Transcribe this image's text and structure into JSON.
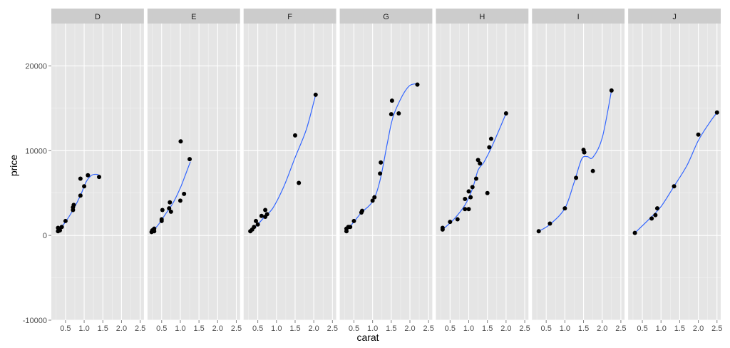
{
  "chart_data": {
    "type": "scatter",
    "xlabel": "carat",
    "ylabel": "price",
    "xlim": [
      0.12,
      2.6
    ],
    "ylim": [
      -10000,
      25000
    ],
    "x_ticks": [
      0.5,
      1.0,
      1.5,
      2.0,
      2.5
    ],
    "x_tick_labels": [
      "0.5",
      "1.0",
      "1.5",
      "2.0",
      "2.5"
    ],
    "y_ticks": [
      -10000,
      0,
      10000,
      20000
    ],
    "y_tick_labels": [
      "-10000",
      "0",
      "10000",
      "20000"
    ],
    "grid": true,
    "smoother": true,
    "colors": {
      "panel_bg": "#e5e5e5",
      "strip_bg": "#cccccc",
      "grid_major": "#ffffff",
      "grid_minor": "#f2f2f2",
      "point": "#000000",
      "smooth_line": "#3366ff"
    },
    "facets": [
      {
        "label": "D",
        "points": [
          [
            0.3,
            500
          ],
          [
            0.3,
            900
          ],
          [
            0.35,
            600
          ],
          [
            0.4,
            1000
          ],
          [
            0.5,
            1700
          ],
          [
            0.7,
            3000
          ],
          [
            0.7,
            3300
          ],
          [
            0.72,
            3600
          ],
          [
            0.9,
            4700
          ],
          [
            0.9,
            6700
          ],
          [
            1.0,
            5800
          ],
          [
            1.1,
            7100
          ],
          [
            1.4,
            6900
          ]
        ],
        "smooth": [
          [
            0.3,
            550
          ],
          [
            0.5,
            1600
          ],
          [
            0.7,
            3000
          ],
          [
            0.9,
            4700
          ],
          [
            1.05,
            6300
          ],
          [
            1.2,
            7100
          ],
          [
            1.35,
            7200
          ],
          [
            1.42,
            7000
          ]
        ]
      },
      {
        "label": "E",
        "points": [
          [
            0.23,
            400
          ],
          [
            0.25,
            600
          ],
          [
            0.3,
            500
          ],
          [
            0.3,
            800
          ],
          [
            0.5,
            1700
          ],
          [
            0.5,
            1900
          ],
          [
            0.52,
            3000
          ],
          [
            0.7,
            3200
          ],
          [
            0.72,
            3900
          ],
          [
            0.75,
            2800
          ],
          [
            1.0,
            4100
          ],
          [
            1.01,
            11100
          ],
          [
            1.1,
            4900
          ],
          [
            1.25,
            9000
          ]
        ],
        "smooth": [
          [
            0.23,
            400
          ],
          [
            0.4,
            1200
          ],
          [
            0.6,
            2500
          ],
          [
            0.8,
            3800
          ],
          [
            1.0,
            5600
          ],
          [
            1.15,
            7300
          ],
          [
            1.27,
            8700
          ]
        ]
      },
      {
        "label": "F",
        "points": [
          [
            0.3,
            500
          ],
          [
            0.35,
            700
          ],
          [
            0.4,
            1000
          ],
          [
            0.45,
            1700
          ],
          [
            0.5,
            1300
          ],
          [
            0.6,
            2300
          ],
          [
            0.7,
            2200
          ],
          [
            0.7,
            3000
          ],
          [
            0.75,
            2500
          ],
          [
            1.5,
            11800
          ],
          [
            1.6,
            6200
          ],
          [
            2.05,
            16600
          ]
        ],
        "smooth": [
          [
            0.3,
            500
          ],
          [
            0.5,
            1300
          ],
          [
            0.7,
            2300
          ],
          [
            0.9,
            3200
          ],
          [
            1.2,
            5800
          ],
          [
            1.5,
            9200
          ],
          [
            1.8,
            12500
          ],
          [
            2.05,
            16600
          ]
        ]
      },
      {
        "label": "G",
        "points": [
          [
            0.3,
            500
          ],
          [
            0.3,
            800
          ],
          [
            0.35,
            1000
          ],
          [
            0.4,
            1000
          ],
          [
            0.5,
            1700
          ],
          [
            0.7,
            2700
          ],
          [
            0.72,
            2900
          ],
          [
            1.0,
            4100
          ],
          [
            1.05,
            4500
          ],
          [
            1.2,
            7300
          ],
          [
            1.22,
            8600
          ],
          [
            1.5,
            14300
          ],
          [
            1.52,
            15900
          ],
          [
            1.7,
            14400
          ],
          [
            2.2,
            17800
          ]
        ],
        "smooth": [
          [
            0.3,
            600
          ],
          [
            0.5,
            1600
          ],
          [
            0.7,
            2700
          ],
          [
            1.0,
            4000
          ],
          [
            1.2,
            6500
          ],
          [
            1.4,
            11000
          ],
          [
            1.55,
            14000
          ],
          [
            1.8,
            16500
          ],
          [
            2.0,
            17700
          ],
          [
            2.2,
            17900
          ]
        ]
      },
      {
        "label": "H",
        "points": [
          [
            0.3,
            700
          ],
          [
            0.3,
            900
          ],
          [
            0.5,
            1600
          ],
          [
            0.7,
            1900
          ],
          [
            0.9,
            3100
          ],
          [
            0.9,
            4300
          ],
          [
            1.0,
            3100
          ],
          [
            1.0,
            5200
          ],
          [
            1.05,
            4500
          ],
          [
            1.1,
            5700
          ],
          [
            1.2,
            6700
          ],
          [
            1.25,
            8900
          ],
          [
            1.3,
            8500
          ],
          [
            1.5,
            5000
          ],
          [
            1.55,
            10400
          ],
          [
            1.6,
            11400
          ],
          [
            2.0,
            14400
          ]
        ],
        "smooth": [
          [
            0.3,
            700
          ],
          [
            0.6,
            1900
          ],
          [
            0.9,
            3600
          ],
          [
            1.1,
            5500
          ],
          [
            1.25,
            7700
          ],
          [
            1.4,
            8600
          ],
          [
            1.6,
            10300
          ],
          [
            1.8,
            12300
          ],
          [
            2.0,
            14400
          ]
        ]
      },
      {
        "label": "I",
        "points": [
          [
            0.3,
            500
          ],
          [
            0.6,
            1400
          ],
          [
            1.0,
            3200
          ],
          [
            1.3,
            6800
          ],
          [
            1.5,
            10100
          ],
          [
            1.52,
            9800
          ],
          [
            1.75,
            7600
          ],
          [
            2.25,
            17100
          ]
        ],
        "smooth": [
          [
            0.3,
            500
          ],
          [
            0.6,
            1300
          ],
          [
            1.0,
            3200
          ],
          [
            1.25,
            6300
          ],
          [
            1.45,
            9000
          ],
          [
            1.6,
            9300
          ],
          [
            1.75,
            9200
          ],
          [
            2.0,
            11500
          ],
          [
            2.25,
            17100
          ]
        ]
      },
      {
        "label": "J",
        "points": [
          [
            0.3,
            300
          ],
          [
            0.75,
            2000
          ],
          [
            0.85,
            2400
          ],
          [
            0.9,
            3200
          ],
          [
            1.35,
            5800
          ],
          [
            2.0,
            11900
          ],
          [
            2.5,
            14500
          ]
        ],
        "smooth": [
          [
            0.3,
            300
          ],
          [
            0.7,
            2000
          ],
          [
            1.0,
            3400
          ],
          [
            1.35,
            5800
          ],
          [
            1.7,
            8300
          ],
          [
            2.0,
            11200
          ],
          [
            2.3,
            13300
          ],
          [
            2.5,
            14500
          ]
        ]
      }
    ]
  }
}
